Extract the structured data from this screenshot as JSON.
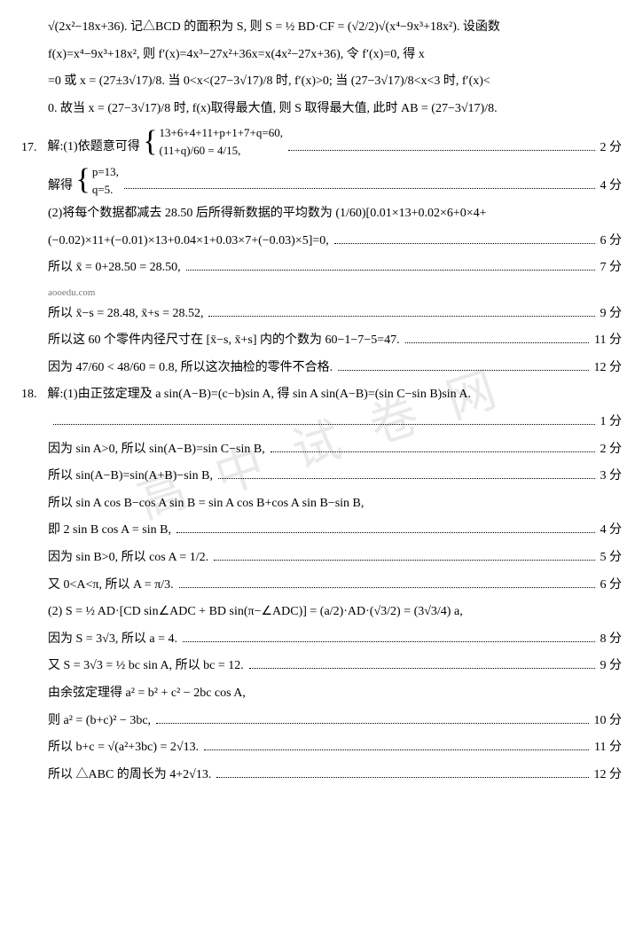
{
  "watermark": "高 中 试 卷 网",
  "top": {
    "l1": "√(2x²−18x+36). 记△BCD 的面积为 S, 则 S = ½ BD·CF = (√2/2)√(x⁴−9x³+18x²). 设函数",
    "l2": "f(x)=x⁴−9x³+18x², 则 f′(x)=4x³−27x²+36x=x(4x²−27x+36), 令 f′(x)=0, 得 x",
    "l3": "=0 或 x = (27±3√17)/8. 当 0<x<(27−3√17)/8 时, f′(x)>0; 当 (27−3√17)/8<x<3 时, f′(x)<",
    "l4": "0. 故当 x = (27−3√17)/8 时, f(x)取得最大值, 则 S 取得最大值, 此时 AB = (27−3√17)/8."
  },
  "q17": {
    "num": "17.",
    "p1_lead": "解:(1)依题意可得",
    "brace1a": "13+6+4+11+p+1+7+q=60,",
    "brace1b_left": "(11+q)/60 = 4/15,",
    "p1_score": "2 分",
    "p2_lead": "解得",
    "brace2a": "p=13,",
    "brace2b": "q=5.",
    "p2_score": "4 分",
    "p3a": "(2)将每个数据都减去 28.50 后所得新数据的平均数为 (1/60)[0.01×13+0.02×6+0×4+",
    "p3b": "(−0.02)×11+(−0.01)×13+0.04×1+0.03×7+(−0.03)×5]=0,",
    "p3_score": "6 分",
    "p4": "所以 x̄ = 0+28.50 = 28.50,",
    "p4_score": "7 分",
    "p5": "所以 x̄−s = 28.48, x̄+s = 28.52,",
    "p5_score": "9 分",
    "p6": "所以这 60 个零件内径尺寸在 [x̄−s, x̄+s] 内的个数为 60−1−7−5=47.",
    "p6_score": "11 分",
    "p7": "因为 47/60 < 48/60 = 0.8, 所以这次抽检的零件不合格.",
    "p7_score": "12 分",
    "site": "aooedu.com"
  },
  "q18": {
    "num": "18.",
    "p1": "解:(1)由正弦定理及 a sin(A−B)=(c−b)sin A, 得 sin A sin(A−B)=(sin C−sin B)sin A.",
    "p1_score": "1 分",
    "p2": "因为 sin A>0, 所以 sin(A−B)=sin C−sin B,",
    "p2_score": "2 分",
    "p3": "所以 sin(A−B)=sin(A+B)−sin B,",
    "p3_score": "3 分",
    "p4a": "所以 sin A cos B−cos A sin B = sin A cos B+cos A sin B−sin B,",
    "p4b": "即 2 sin B cos A = sin B,",
    "p4_score": "4 分",
    "p5": "因为 sin B>0, 所以 cos A = 1/2.",
    "p5_score": "5 分",
    "p6": "又 0<A<π, 所以 A = π/3.",
    "p6_score": "6 分",
    "p7": "(2) S = ½ AD·[CD sin∠ADC + BD sin(π−∠ADC)] = (a/2)·AD·(√3/2) = (3√3/4) a,",
    "p8": "因为 S = 3√3, 所以 a = 4.",
    "p8_score": "8 分",
    "p9": "又 S = 3√3 = ½ bc sin A, 所以 bc = 12.",
    "p9_score": "9 分",
    "p10a": "由余弦定理得 a² = b² + c² − 2bc cos A,",
    "p10b": "则 a² = (b+c)² − 3bc,",
    "p10_score": "10 分",
    "p11": "所以 b+c = √(a²+3bc) = 2√13.",
    "p11_score": "11 分",
    "p12": "所以 △ABC 的周长为 4+2√13.",
    "p12_score": "12 分"
  }
}
